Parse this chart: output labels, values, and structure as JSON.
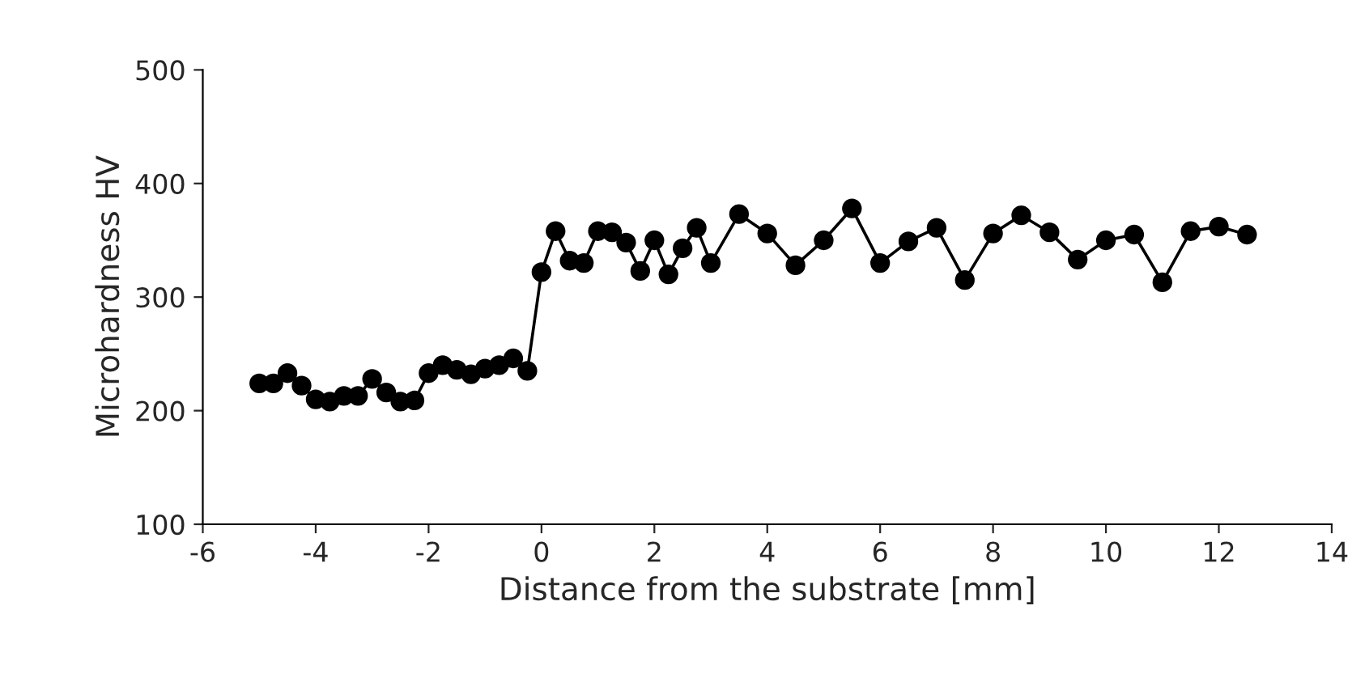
{
  "chart_data": {
    "type": "line",
    "xlabel": "Distance from the substrate [mm]",
    "ylabel": "Microhardness HV",
    "xlim": [
      -6,
      14
    ],
    "xticks": [
      -6,
      -4,
      -2,
      0,
      2,
      4,
      6,
      8,
      10,
      12,
      14
    ],
    "ylim": [
      100,
      500
    ],
    "yticks": [
      100,
      200,
      300,
      400,
      500
    ],
    "grid": false,
    "legend": false,
    "marker": "circle",
    "line_style": "solid",
    "series": [
      {
        "color": "#000000",
        "x": [
          -5,
          -4.75,
          -4.5,
          -4.25,
          -4,
          -3.75,
          -3.5,
          -3.25,
          -3,
          -2.75,
          -2.5,
          -2.25,
          -2,
          -1.75,
          -1.5,
          -1.25,
          -1,
          -0.75,
          -0.5,
          -0.25,
          0,
          0.25,
          0.5,
          0.75,
          1,
          1.25,
          1.5,
          1.75,
          2,
          2.25,
          2.5,
          2.75,
          3,
          3.5,
          4,
          4.5,
          5,
          5.5,
          6,
          6.5,
          7,
          7.5,
          8,
          8.5,
          9,
          9.5,
          10,
          10.5,
          11,
          11.5,
          12,
          12.5
        ],
        "values": [
          224,
          224,
          233,
          222,
          210,
          208,
          213,
          213,
          228,
          216,
          208,
          209,
          233,
          240,
          236,
          232,
          237,
          240,
          246,
          235,
          322,
          358,
          332,
          330,
          358,
          357,
          348,
          323,
          350,
          320,
          343,
          361,
          330,
          373,
          356,
          328,
          350,
          378,
          330,
          349,
          361,
          315,
          356,
          372,
          357,
          333,
          350,
          355,
          313,
          358,
          362,
          355
        ]
      }
    ]
  }
}
